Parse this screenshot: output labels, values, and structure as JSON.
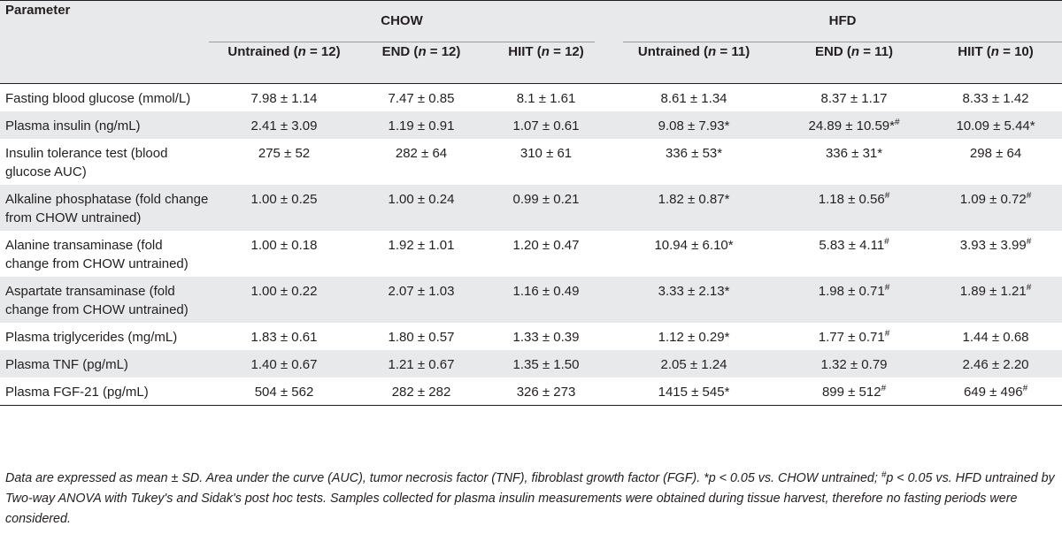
{
  "table": {
    "param_header": "Parameter",
    "groups": [
      "CHOW",
      "HFD"
    ],
    "columns": [
      {
        "label": "Untrained",
        "n": "12"
      },
      {
        "label": "END",
        "n": "12"
      },
      {
        "label": "HIIT",
        "n": "12"
      },
      {
        "label": "Untrained",
        "n": "11"
      },
      {
        "label": "END",
        "n": "11"
      },
      {
        "label": "HIIT",
        "n": "10"
      }
    ],
    "rows": [
      {
        "name": "Fasting blood glucose (mmol/L)",
        "values": [
          "7.98 ± 1.14",
          "7.47 ± 0.85",
          "8.1 ± 1.61",
          "8.61 ± 1.34",
          "8.37 ± 1.17",
          "8.33 ± 1.42"
        ],
        "marks": [
          "",
          "",
          "",
          "",
          "",
          ""
        ]
      },
      {
        "name": "Plasma insulin (ng/mL)",
        "values": [
          "2.41 ± 3.09",
          "1.19 ± 0.91",
          "1.07 ± 0.61",
          "9.08 ± 7.93",
          "24.89 ± 10.59",
          "10.09 ± 5.44"
        ],
        "marks": [
          "",
          "",
          "",
          "*",
          "*#",
          "*"
        ]
      },
      {
        "name": "Insulin tolerance test (blood glucose AUC)",
        "values": [
          "275 ± 52",
          "282 ± 64",
          "310 ± 61",
          "336 ± 53",
          "336 ± 31",
          "298 ± 64"
        ],
        "marks": [
          "",
          "",
          "",
          "*",
          "*",
          ""
        ]
      },
      {
        "name": "Alkaline phosphatase (fold change from CHOW untrained)",
        "values": [
          "1.00 ± 0.25",
          "1.00 ± 0.24",
          "0.99 ± 0.21",
          "1.82 ± 0.87",
          "1.18 ± 0.56",
          "1.09 ± 0.72"
        ],
        "marks": [
          "",
          "",
          "",
          "*",
          "#",
          "#"
        ]
      },
      {
        "name": "Alanine transaminase (fold change from CHOW untrained)",
        "values": [
          "1.00 ± 0.18",
          "1.92 ± 1.01",
          "1.20 ± 0.47",
          "10.94 ± 6.10",
          "5.83 ± 4.11",
          "3.93 ± 3.99"
        ],
        "marks": [
          "",
          "",
          "",
          "*",
          "#",
          "#"
        ]
      },
      {
        "name": "Aspartate transaminase (fold change from CHOW untrained)",
        "values": [
          "1.00 ± 0.22",
          "2.07 ± 1.03",
          "1.16 ± 0.49",
          "3.33 ± 2.13",
          "1.98 ± 0.71",
          "1.89 ± 1.21"
        ],
        "marks": [
          "",
          "",
          "",
          "*",
          "#",
          "#"
        ]
      },
      {
        "name": "Plasma triglycerides (mg/mL)",
        "values": [
          "1.83 ± 0.61",
          "1.80 ± 0.57",
          "1.33 ± 0.39",
          "1.12 ± 0.29",
          "1.77 ± 0.71",
          "1.44 ± 0.68"
        ],
        "marks": [
          "",
          "",
          "",
          "*",
          "#",
          ""
        ]
      },
      {
        "name": "Plasma TNF (pg/mL)",
        "values": [
          "1.40 ± 0.67",
          "1.21 ± 0.67",
          "1.35 ± 1.50",
          "2.05 ± 1.24",
          "1.32 ± 0.79",
          "2.46 ± 2.20"
        ],
        "marks": [
          "",
          "",
          "",
          "",
          "",
          ""
        ]
      },
      {
        "name": "Plasma FGF-21 (pg/mL)",
        "values": [
          "504 ± 562",
          "282 ± 282",
          "326 ± 273",
          "1415 ± 545",
          "899 ± 512",
          "649 ± 496"
        ],
        "marks": [
          "",
          "",
          "",
          "*",
          "#",
          "#"
        ]
      }
    ]
  },
  "footnote": {
    "part1": "Data are expressed as mean ± SD. Area under the curve (AUC), tumor necrosis factor (TNF), fibroblast growth factor (FGF). *",
    "p1": "p",
    "part2": " < 0.05 vs. CHOW untrained; ",
    "hash": "#",
    "p2": "p",
    "part3": " < 0.05 vs. HFD untrained by Two-way ANOVA with Tukey's and Sidak's post hoc tests. Samples collected for plasma insulin measurements were obtained during tissue harvest, therefore no fasting periods were considered."
  }
}
